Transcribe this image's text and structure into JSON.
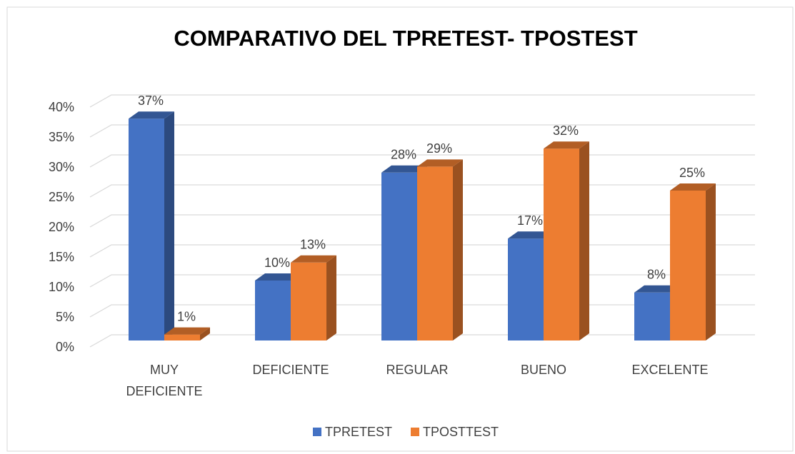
{
  "chart_data": {
    "type": "bar3d",
    "title": "COMPARATIVO DEL TPRETEST- TPOSTEST",
    "categories": [
      "MUY DEFICIENTE",
      "DEFICIENTE",
      "REGULAR",
      "BUENO",
      "EXCELENTE"
    ],
    "series": [
      {
        "name": "TPRETEST",
        "color": "#4472c4",
        "values": [
          37,
          10,
          28,
          17,
          8
        ],
        "value_labels": [
          "37%",
          "10%",
          "28%",
          "17%",
          "8%"
        ]
      },
      {
        "name": "TPOSTTEST",
        "color": "#ed7d31",
        "values": [
          1,
          13,
          29,
          32,
          25
        ],
        "value_labels": [
          "1%",
          "13%",
          "29%",
          "32%",
          "25%"
        ]
      }
    ],
    "ylim": [
      0,
      40
    ],
    "yticks": [
      {
        "value": 0,
        "label": "0%"
      },
      {
        "value": 5,
        "label": "5%"
      },
      {
        "value": 10,
        "label": "10%"
      },
      {
        "value": 15,
        "label": "15%"
      },
      {
        "value": 20,
        "label": "20%"
      },
      {
        "value": 25,
        "label": "25%"
      },
      {
        "value": 30,
        "label": "30%"
      },
      {
        "value": 35,
        "label": "35%"
      },
      {
        "value": 40,
        "label": "40%"
      }
    ],
    "grid": true,
    "legend": "bottom"
  }
}
